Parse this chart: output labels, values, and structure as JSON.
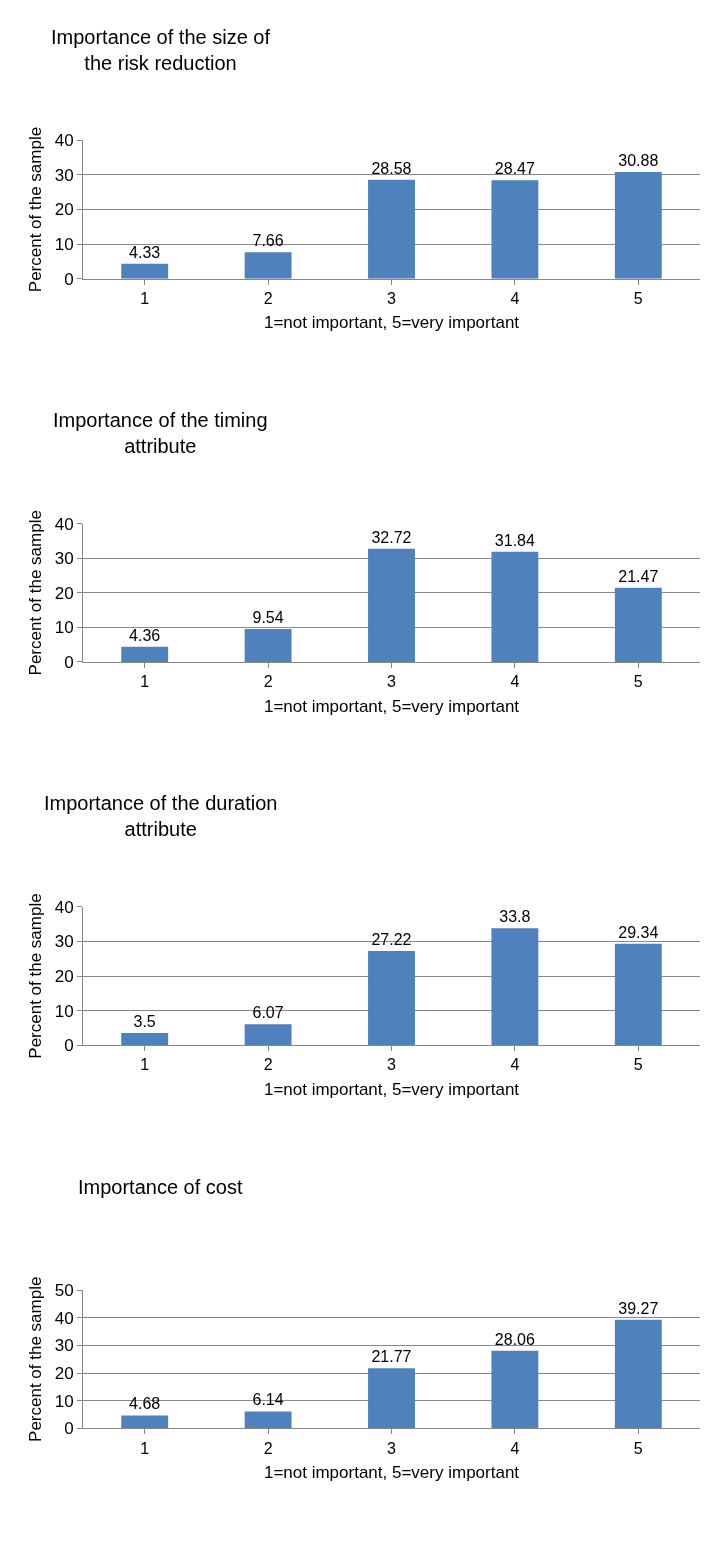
{
  "chart_data": [
    {
      "type": "bar",
      "title": "Importance of the size of the risk reduction",
      "xlabel": "1=not important, 5=very important",
      "ylabel": "Percent of the sample",
      "categories": [
        "1",
        "2",
        "3",
        "4",
        "5"
      ],
      "values": [
        4.33,
        7.66,
        28.58,
        28.47,
        30.88
      ],
      "color": "#4f81bd",
      "ylim": [
        0,
        40
      ],
      "yticks": [
        0,
        10,
        20,
        30,
        40
      ],
      "grid": "y",
      "data_labels": true
    },
    {
      "type": "bar",
      "title": "Importance of the timing attribute",
      "xlabel": "1=not important, 5=very important",
      "ylabel": "Percent of the sample",
      "categories": [
        "1",
        "2",
        "3",
        "4",
        "5"
      ],
      "values": [
        4.36,
        9.54,
        32.72,
        31.84,
        21.47
      ],
      "color": "#4f81bd",
      "ylim": [
        0,
        40
      ],
      "yticks": [
        0,
        10,
        20,
        30,
        40
      ],
      "grid": "y",
      "data_labels": true
    },
    {
      "type": "bar",
      "title": "Importance of the duration attribute",
      "xlabel": "1=not important, 5=very important",
      "ylabel": "Percent of the sample",
      "categories": [
        "1",
        "2",
        "3",
        "4",
        "5"
      ],
      "values": [
        3.5,
        6.07,
        27.22,
        33.8,
        29.34
      ],
      "color": "#4f81bd",
      "ylim": [
        0,
        40
      ],
      "yticks": [
        0,
        10,
        20,
        30,
        40
      ],
      "grid": "y",
      "data_labels": true
    },
    {
      "type": "bar",
      "title": "Importance of cost",
      "xlabel": "1=not important, 5=very important",
      "ylabel": "Percent of the sample",
      "categories": [
        "1",
        "2",
        "3",
        "4",
        "5"
      ],
      "values": [
        4.68,
        6.14,
        21.77,
        28.06,
        39.27
      ],
      "color": "#4f81bd",
      "ylim": [
        0,
        50
      ],
      "yticks": [
        0,
        10,
        20,
        30,
        40,
        50
      ],
      "grid": "y",
      "data_labels": true
    }
  ]
}
